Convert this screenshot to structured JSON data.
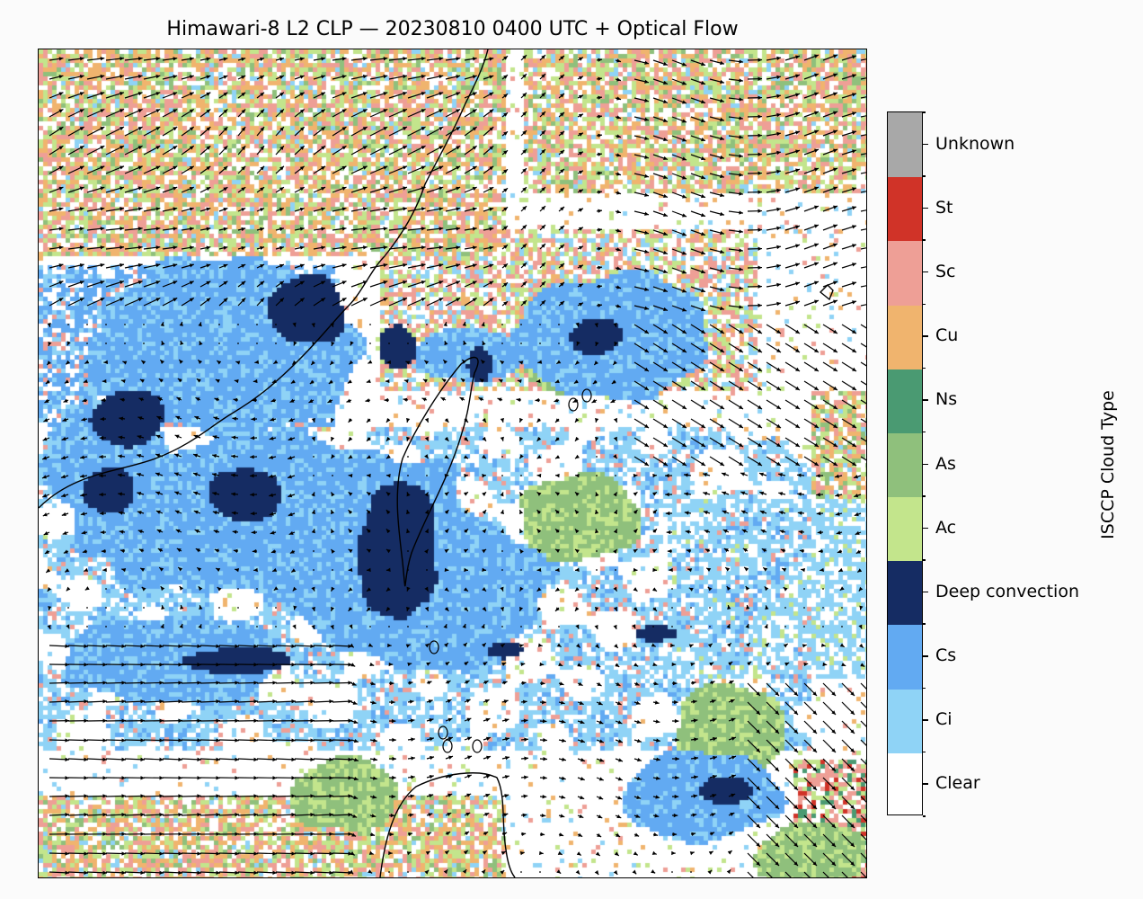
{
  "figure": {
    "title": "Himawari-8 L2 CLP — 20230810 0400 UTC  + Optical Flow"
  },
  "colorbar": {
    "title": "ISCCP Cloud Type",
    "categories": [
      {
        "label": "Clear",
        "color": "#ffffff"
      },
      {
        "label": "Ci",
        "color": "#8fd3f6"
      },
      {
        "label": "Cs",
        "color": "#62aaf2"
      },
      {
        "label": "Deep convection",
        "color": "#152c63"
      },
      {
        "label": "Ac",
        "color": "#c3e58c"
      },
      {
        "label": "As",
        "color": "#8fc07c"
      },
      {
        "label": "Ns",
        "color": "#4a9a72"
      },
      {
        "label": "Cu",
        "color": "#f0b46e"
      },
      {
        "label": "Sc",
        "color": "#ee9f96"
      },
      {
        "label": "St",
        "color": "#d03328"
      },
      {
        "label": "Unknown",
        "color": "#a8a8a8"
      }
    ]
  },
  "map": {
    "coastline_color": "#000000",
    "arrow_color": "#000000",
    "layers": [
      "cloud-type-grid",
      "coastlines",
      "optical-flow-vectors"
    ]
  }
}
